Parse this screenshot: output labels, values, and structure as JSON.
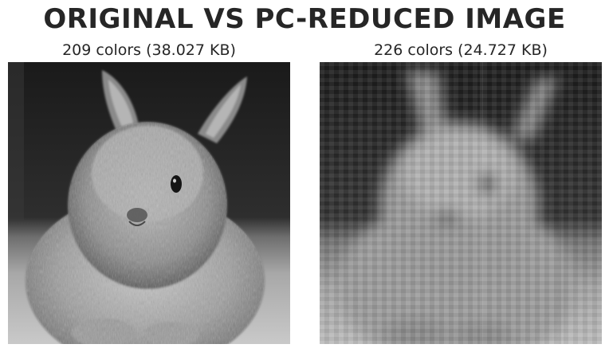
{
  "title": "ORIGINAL VS PC-REDUCED IMAGE",
  "panels": [
    {
      "label": "209 colors (38.027 KB)",
      "content": "rabbit-photo-grayscale"
    },
    {
      "label": "226 colors (24.727 KB)",
      "content": "rabbit-photo-grayscale-pca-reduced"
    }
  ]
}
